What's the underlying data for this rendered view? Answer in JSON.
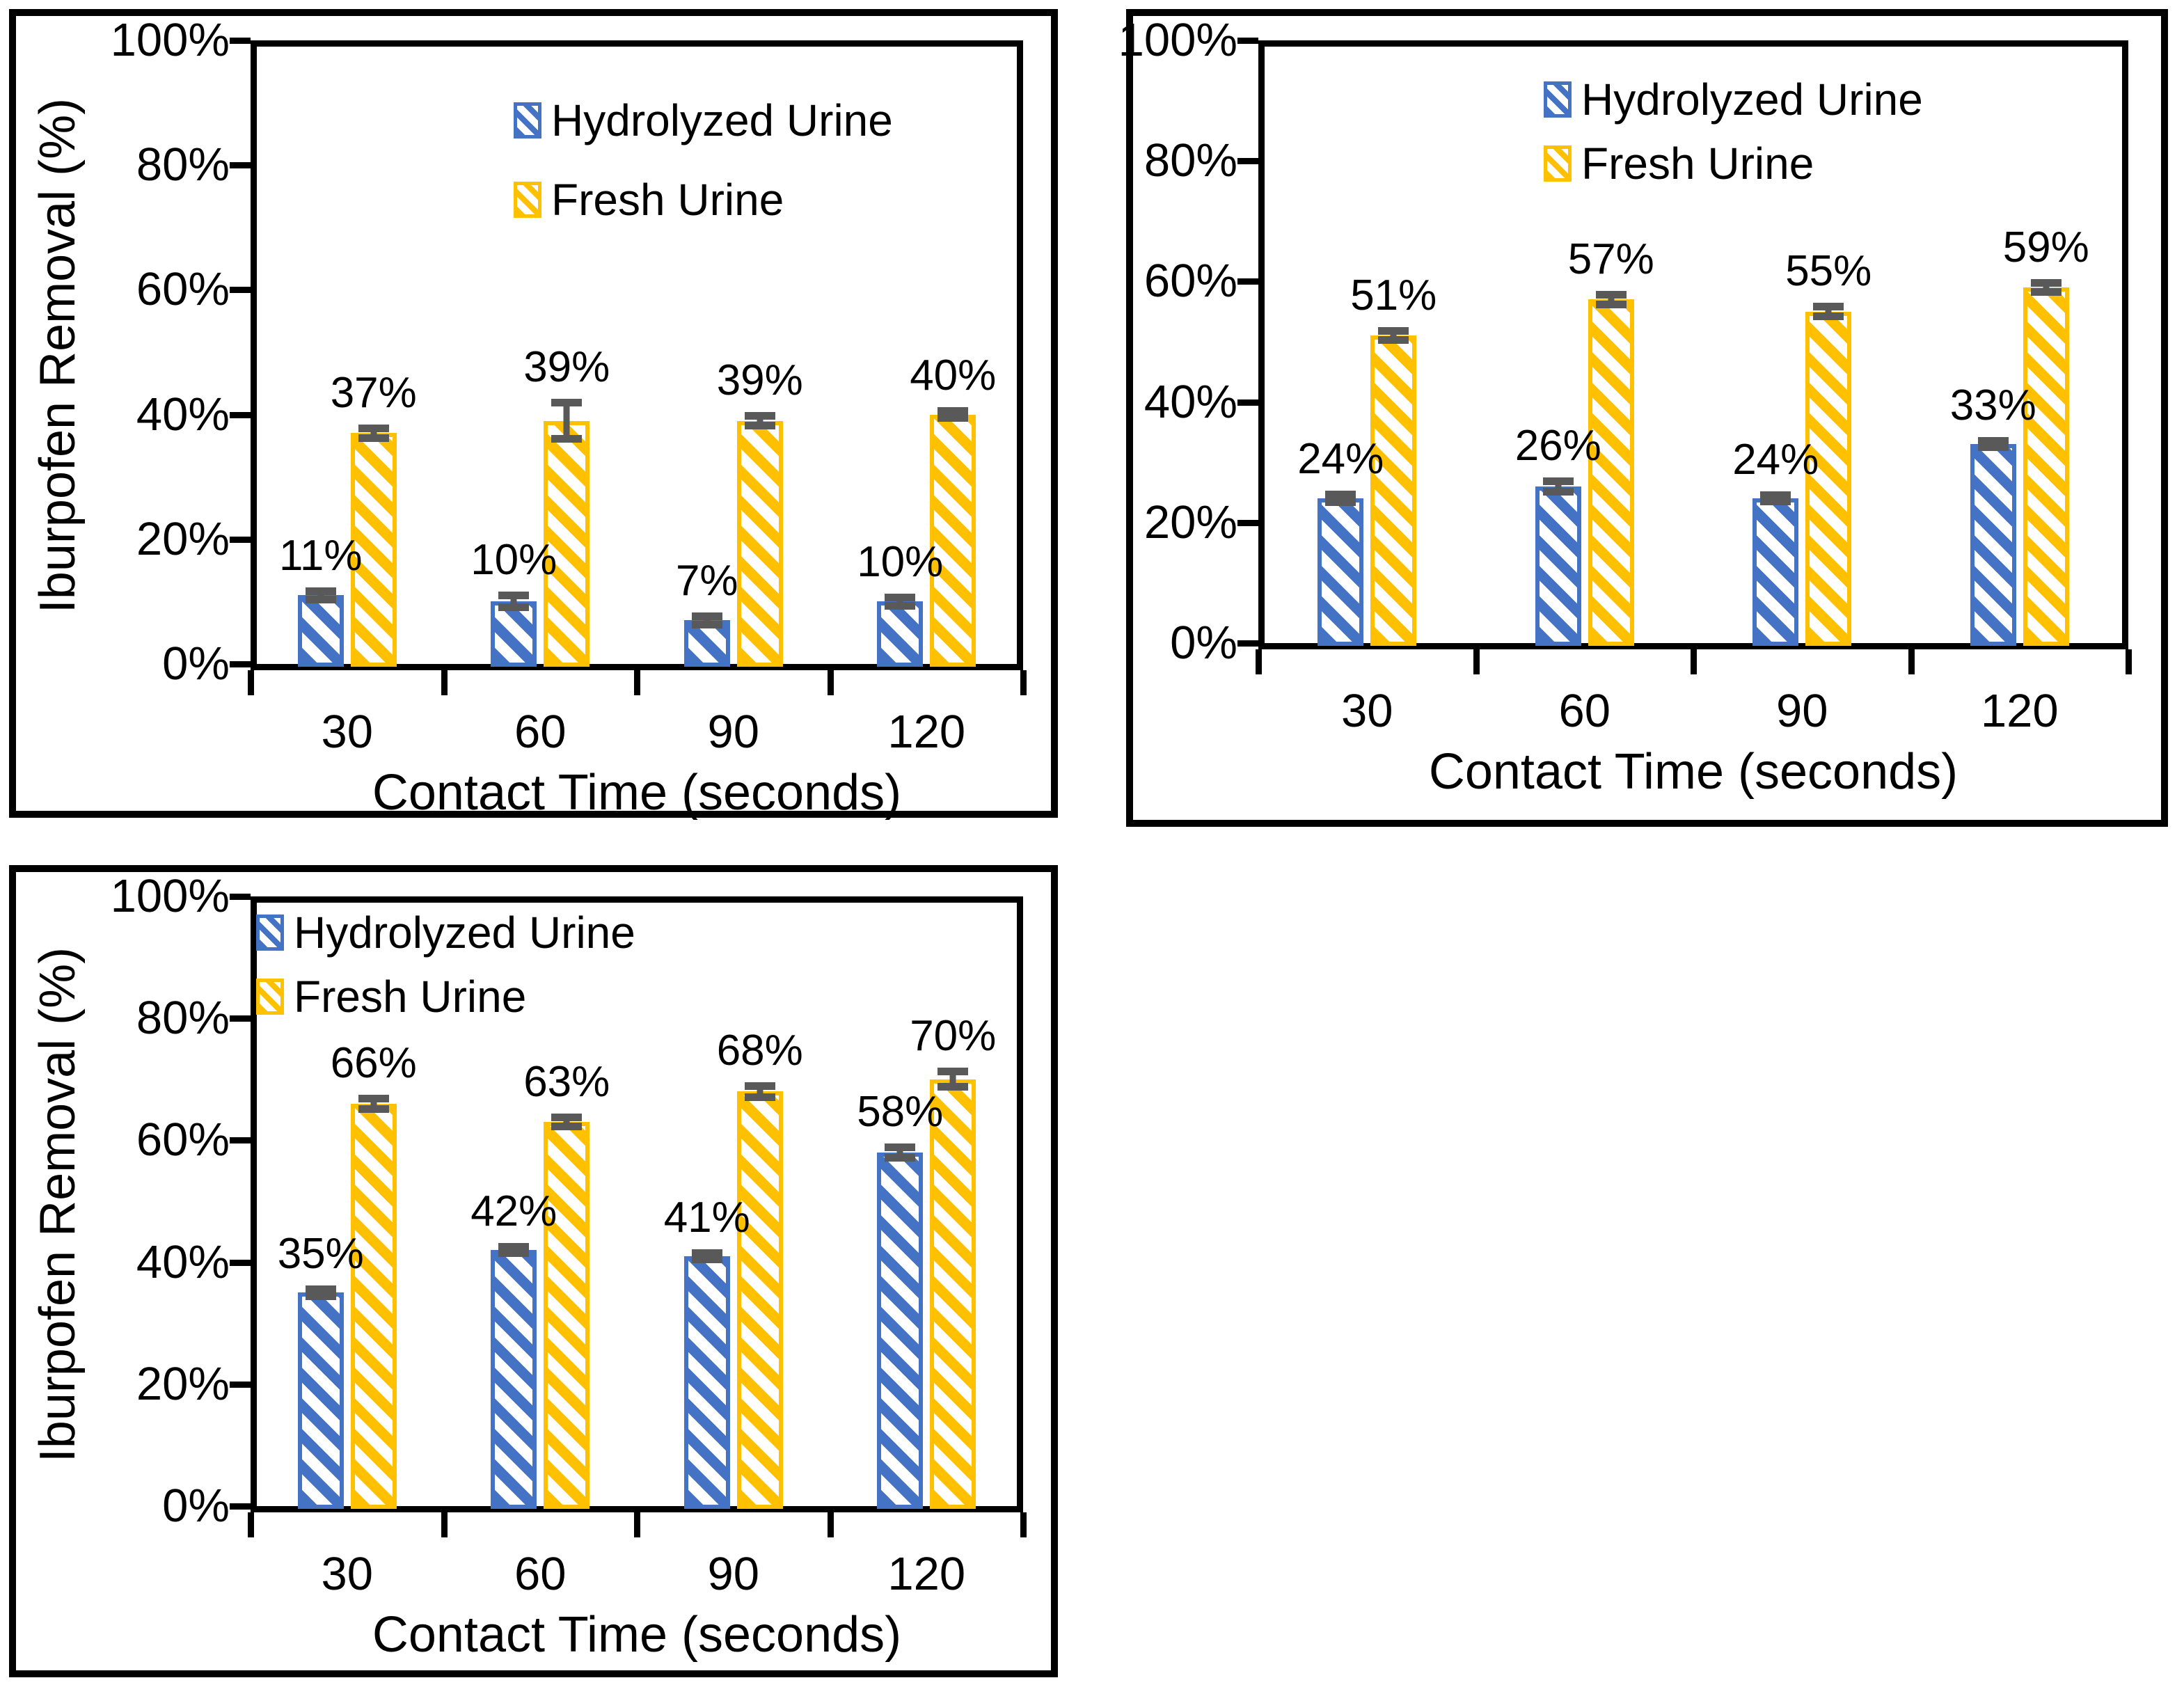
{
  "figure": {
    "description": "Three grouped bar charts of ibuprofen removal vs contact time for hydrolyzed vs fresh urine"
  },
  "colors": {
    "hydrolyzed": "#4472C4",
    "fresh": "#FFC000",
    "error_bar": "#595959",
    "axis": "#000000"
  },
  "legend": {
    "hydrolyzed_label": "Hydrolyzed Urine",
    "fresh_label": "Fresh Urine"
  },
  "chart_data": [
    {
      "id": "top-left",
      "type": "bar",
      "title": "",
      "xlabel": "Contact Time (seconds)",
      "ylabel": "Iburpofen Removal (%)",
      "ylim": [
        0,
        100
      ],
      "y_ticks": [
        "0%",
        "20%",
        "40%",
        "60%",
        "80%",
        "100%"
      ],
      "y_tick_values": [
        0,
        20,
        40,
        60,
        80,
        100
      ],
      "categories": [
        "30",
        "60",
        "90",
        "120"
      ],
      "legend_position": "inside-top-center",
      "grid": "off",
      "series": [
        {
          "name": "Hydrolyzed Urine",
          "values": [
            11,
            10,
            7,
            10
          ],
          "labels": [
            "11%",
            "10%",
            "7%",
            "10%"
          ],
          "errors": [
            0.7,
            1.0,
            0.7,
            0.7
          ]
        },
        {
          "name": "Fresh Urine",
          "values": [
            37,
            39,
            39,
            40
          ],
          "labels": [
            "37%",
            "39%",
            "39%",
            "40%"
          ],
          "errors": [
            0.8,
            3.0,
            0.8,
            0.6
          ]
        }
      ]
    },
    {
      "id": "top-right",
      "type": "bar",
      "title": "",
      "xlabel": "Contact Time (seconds)",
      "ylabel": "",
      "ylim": [
        0,
        100
      ],
      "y_ticks": [
        "0%",
        "20%",
        "40%",
        "60%",
        "80%",
        "100%"
      ],
      "y_tick_values": [
        0,
        20,
        40,
        60,
        80,
        100
      ],
      "categories": [
        "30",
        "60",
        "90",
        "120"
      ],
      "legend_position": "inside-top-center",
      "grid": "off",
      "series": [
        {
          "name": "Hydrolyzed Urine",
          "values": [
            24,
            26,
            24,
            33
          ],
          "labels": [
            "24%",
            "26%",
            "24%",
            "33%"
          ],
          "errors": [
            0.7,
            0.9,
            0.6,
            0.6
          ]
        },
        {
          "name": "Fresh Urine",
          "values": [
            51,
            57,
            55,
            59
          ],
          "labels": [
            "51%",
            "57%",
            "55%",
            "59%"
          ],
          "errors": [
            0.8,
            0.9,
            0.9,
            0.8
          ]
        }
      ]
    },
    {
      "id": "bottom-left",
      "type": "bar",
      "title": "",
      "xlabel": "Contact Time (seconds)",
      "ylabel": "Iburpofen Removal (%)",
      "ylim": [
        0,
        100
      ],
      "y_ticks": [
        "0%",
        "20%",
        "40%",
        "60%",
        "80%",
        "100%"
      ],
      "y_tick_values": [
        0,
        20,
        40,
        60,
        80,
        100
      ],
      "categories": [
        "30",
        "60",
        "90",
        "120"
      ],
      "legend_position": "inside-top-center",
      "grid": "off",
      "series": [
        {
          "name": "Hydrolyzed Urine",
          "values": [
            35,
            42,
            41,
            58
          ],
          "labels": [
            "35%",
            "42%",
            "41%",
            "58%"
          ],
          "errors": [
            0.6,
            0.6,
            0.6,
            0.9
          ]
        },
        {
          "name": "Fresh Urine",
          "values": [
            66,
            63,
            68,
            70
          ],
          "labels": [
            "66%",
            "63%",
            "68%",
            "70%"
          ],
          "errors": [
            0.9,
            0.8,
            1.0,
            1.3
          ]
        }
      ]
    }
  ]
}
